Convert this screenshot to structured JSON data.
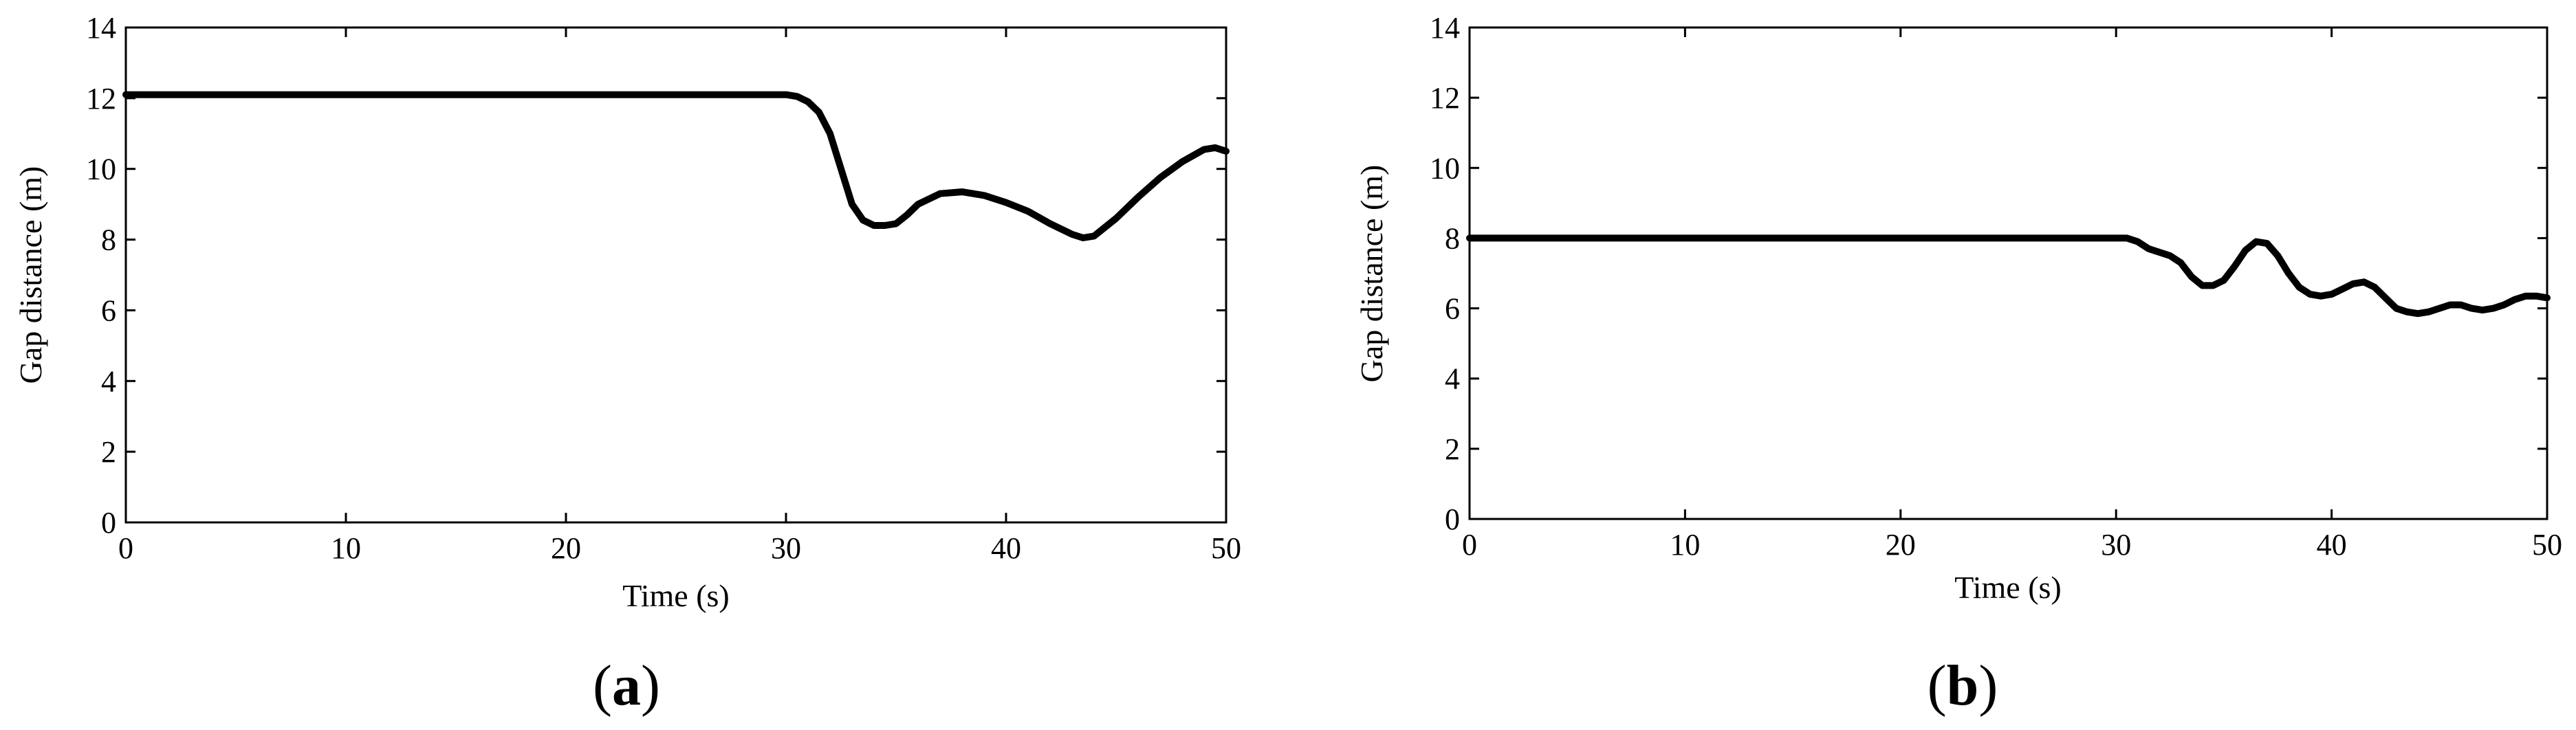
{
  "chart_data": [
    {
      "type": "line",
      "panel": "a",
      "xlabel": "Time (s)",
      "ylabel": "Gap distance (m)",
      "xlim": [
        0,
        50
      ],
      "ylim": [
        0,
        14
      ],
      "xticks": [
        0,
        10,
        20,
        30,
        40,
        50
      ],
      "yticks": [
        0,
        2,
        4,
        6,
        8,
        10,
        12,
        14
      ],
      "grid": false,
      "series": [
        {
          "color": "#000000",
          "x": [
            0,
            5,
            10,
            15,
            20,
            25,
            29,
            30,
            30.5,
            31,
            31.5,
            32,
            32.5,
            33,
            33.5,
            34,
            34.5,
            35,
            35.5,
            36,
            37,
            38,
            39,
            40,
            41,
            42,
            43,
            43.5,
            44,
            45,
            46,
            47,
            48,
            49,
            49.5,
            50
          ],
          "y": [
            12.1,
            12.1,
            12.1,
            12.1,
            12.1,
            12.1,
            12.1,
            12.1,
            12.05,
            11.9,
            11.6,
            11.0,
            10.0,
            9.0,
            8.55,
            8.4,
            8.4,
            8.45,
            8.7,
            9.0,
            9.3,
            9.35,
            9.25,
            9.05,
            8.8,
            8.45,
            8.15,
            8.05,
            8.1,
            8.6,
            9.2,
            9.75,
            10.2,
            10.55,
            10.6,
            10.5
          ]
        }
      ]
    },
    {
      "type": "line",
      "panel": "b",
      "xlabel": "Time (s)",
      "ylabel": "Gap distance (m)",
      "xlim": [
        0,
        50
      ],
      "ylim": [
        0,
        14
      ],
      "xticks": [
        0,
        10,
        20,
        30,
        40,
        50
      ],
      "yticks": [
        0,
        2,
        4,
        6,
        8,
        10,
        12,
        14
      ],
      "grid": false,
      "series": [
        {
          "color": "#000000",
          "x": [
            0,
            10,
            20,
            30,
            30.5,
            31,
            31.5,
            32,
            32.5,
            33,
            33.5,
            34,
            34.5,
            35,
            35.5,
            36,
            36.5,
            37,
            37.5,
            38,
            38.5,
            39,
            39.5,
            40,
            40.5,
            41,
            41.5,
            42,
            42.5,
            43,
            43.5,
            44,
            44.5,
            45,
            45.5,
            46,
            46.5,
            47,
            47.5,
            48,
            48.5,
            49,
            49.5,
            50
          ],
          "y": [
            8.0,
            8.0,
            8.0,
            8.0,
            8.0,
            7.9,
            7.7,
            7.6,
            7.5,
            7.3,
            6.9,
            6.65,
            6.65,
            6.8,
            7.2,
            7.65,
            7.9,
            7.85,
            7.5,
            7.0,
            6.6,
            6.4,
            6.35,
            6.4,
            6.55,
            6.7,
            6.75,
            6.6,
            6.3,
            6.0,
            5.9,
            5.85,
            5.9,
            6.0,
            6.1,
            6.1,
            6.0,
            5.95,
            6.0,
            6.1,
            6.25,
            6.35,
            6.35,
            6.3
          ]
        }
      ]
    }
  ],
  "panels": [
    {
      "label": "a"
    },
    {
      "label": "b"
    }
  ]
}
